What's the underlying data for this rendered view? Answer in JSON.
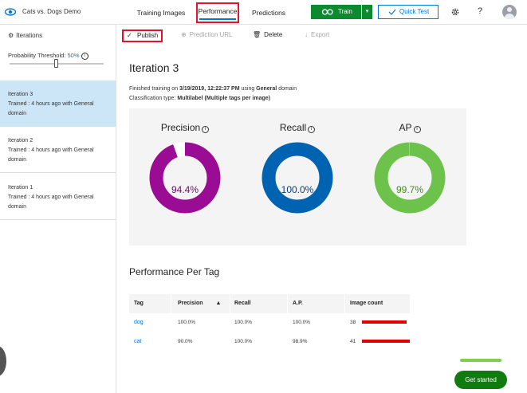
{
  "header": {
    "app_title": "Cats vs. Dogs Demo",
    "tabs": [
      {
        "label": "Training Images"
      },
      {
        "label": "Performance"
      },
      {
        "label": "Predictions"
      }
    ],
    "train_label": "Train",
    "quick_test_label": "Quick Test",
    "help_label": "?"
  },
  "sidebar": {
    "title": "Iterations",
    "threshold_label": "Probability Threshold: ",
    "threshold_value": "50%",
    "threshold_fraction": 0.5,
    "iterations": [
      {
        "name": "Iteration 3",
        "detail": "Trained : 4 hours ago with General domain"
      },
      {
        "name": "Iteration 2",
        "detail": "Trained : 4 hours ago with General domain"
      },
      {
        "name": "Iteration 1",
        "detail": "Trained : 4 hours ago with General domain"
      }
    ]
  },
  "toolbar": {
    "publish": "Publish",
    "prediction_url": "Prediction URL",
    "delete": "Delete",
    "export": "Export"
  },
  "main": {
    "iteration_title": "Iteration 3",
    "finished_prefix": "Finished training on ",
    "finished_date": "3/19/2019, 12:22:37 PM",
    "finished_mid": " using ",
    "finished_domain": "General",
    "finished_suffix": " domain",
    "classtype_prefix": "Classification type: ",
    "classtype_value": "Multilabel (Multiple tags per image)",
    "metrics": [
      {
        "label": "Precision",
        "value": "94.4%",
        "fraction": 0.944,
        "color": "#9b0c94",
        "value_color": "#6e0a6a"
      },
      {
        "label": "Recall",
        "value": "100.0%",
        "fraction": 1.0,
        "color": "#0063b1",
        "value_color": "#0a3d7a"
      },
      {
        "label": "AP",
        "value": "99.7%",
        "fraction": 0.997,
        "color": "#6cc24a",
        "value_color": "#3c8a1c"
      }
    ],
    "per_tag_title": "Performance Per Tag",
    "table_headers": [
      "Tag",
      "Precision",
      "Recall",
      "A.P.",
      "Image count"
    ],
    "rows": [
      {
        "tag": "dog",
        "precision": "100.0%",
        "recall": "100.0%",
        "ap": "100.0%",
        "count": "38"
      },
      {
        "tag": "cat",
        "precision": "90.0%",
        "recall": "100.0%",
        "ap": "98.9%",
        "count": "41"
      }
    ]
  },
  "footer": {
    "get_started": "Get started"
  },
  "colors": {
    "accent": "#0078d4",
    "train_green": "#0b8a2f",
    "bar_red": "#e00000",
    "selected_bg": "#cde6f7",
    "highlight_red": "#e8112d"
  }
}
